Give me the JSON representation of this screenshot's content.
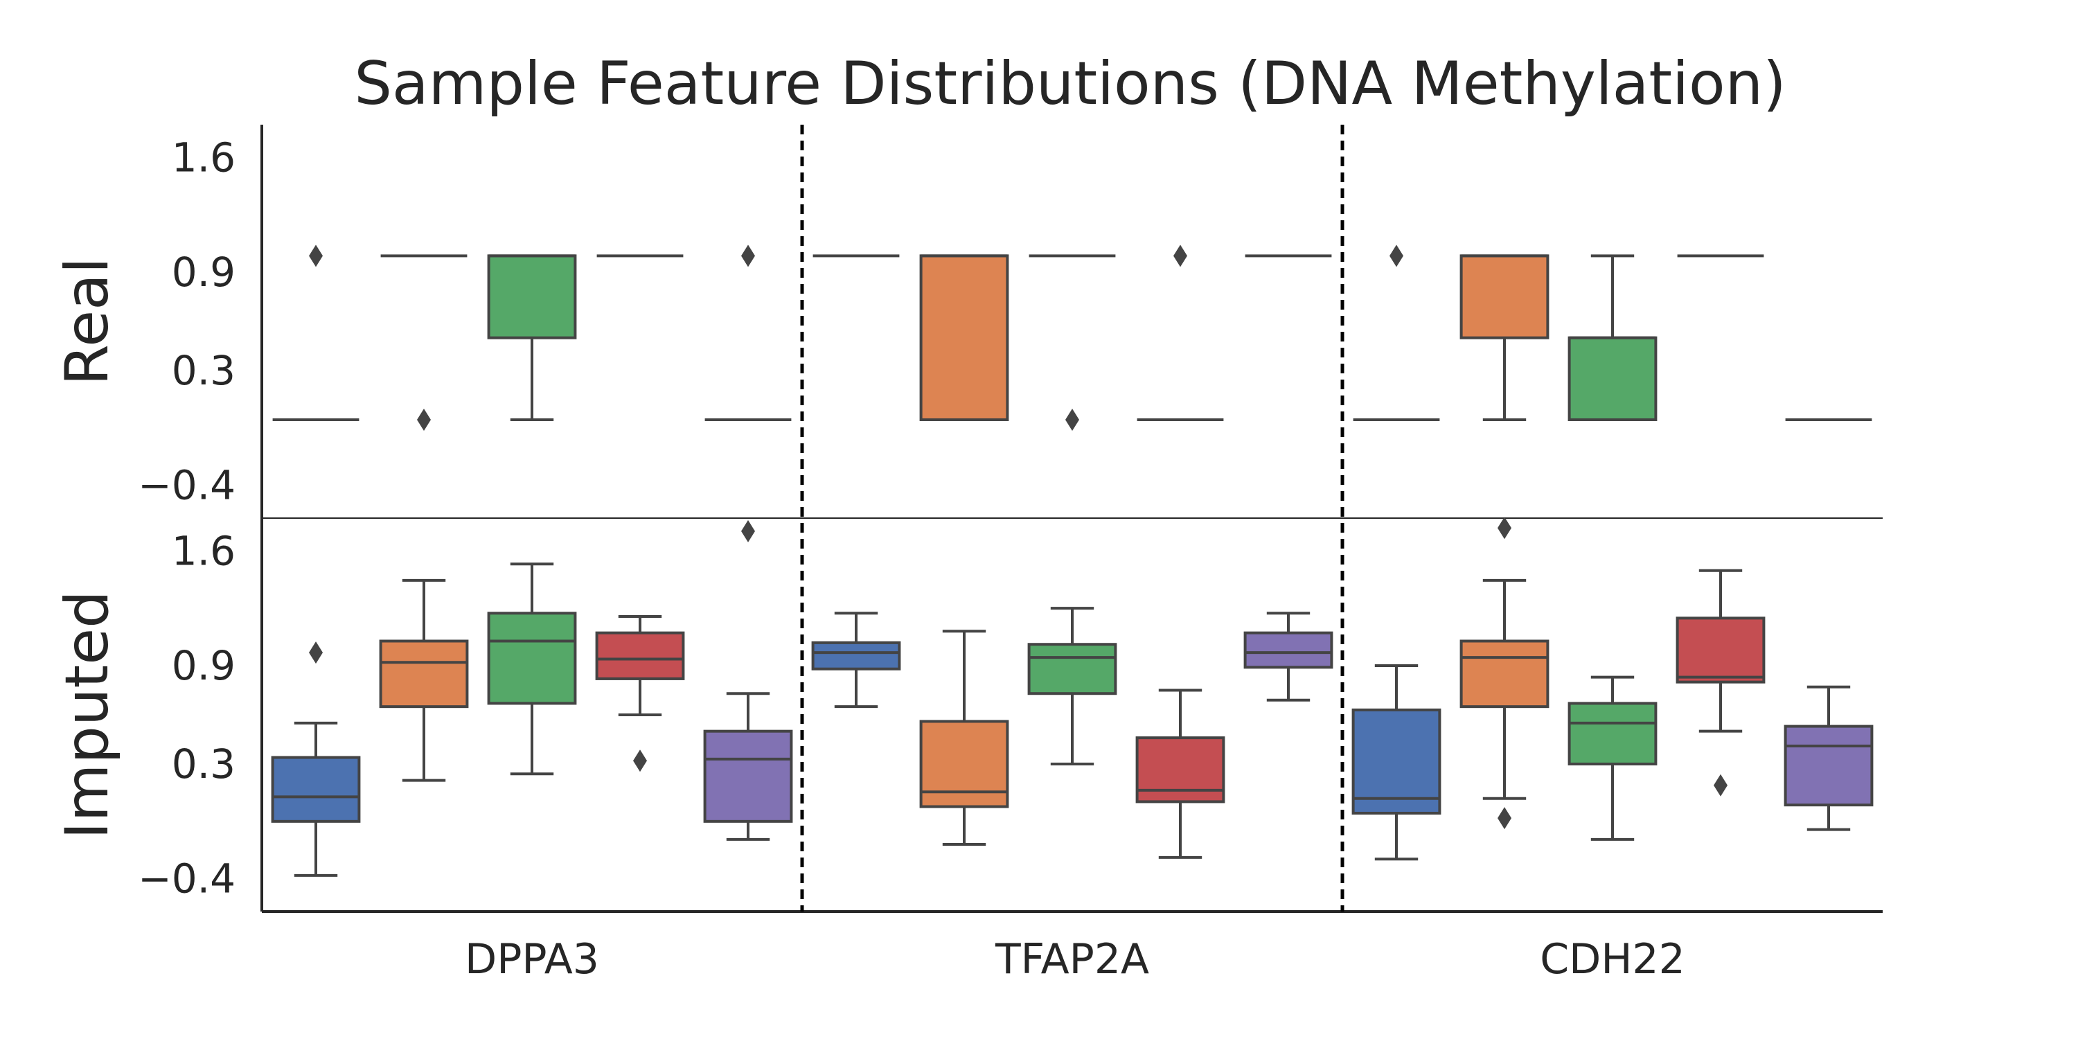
{
  "chart_data": {
    "type": "box",
    "title": "Sample Feature Distributions (DNA Methylation)",
    "rows": [
      "Real",
      "Imputed"
    ],
    "genes": [
      "DPPA3",
      "TFAP2A",
      "CDH22"
    ],
    "yticks": [
      1.6,
      0.9,
      0.3,
      -0.4
    ],
    "ytick_labels": [
      "1.6",
      "0.9",
      "0.3",
      "−0.4"
    ],
    "ylim": [
      -0.6,
      1.8
    ],
    "palette": [
      "#4c72b0",
      "#dd8452",
      "#55a868",
      "#c44e52",
      "#8172b3"
    ],
    "line_color": "#444444",
    "separators": "dashed",
    "panels": [
      {
        "row": "Real",
        "gene": "DPPA3",
        "boxes": [
          {
            "q1": 0.0,
            "median": 0.0,
            "q3": 0.0,
            "wlow": 0.0,
            "whigh": 0.0,
            "outliers": [
              1.0
            ]
          },
          {
            "q1": 1.0,
            "median": 1.0,
            "q3": 1.0,
            "wlow": 1.0,
            "whigh": 1.0,
            "outliers": [
              0.0
            ]
          },
          {
            "q1": 0.5,
            "median": 1.0,
            "q3": 1.0,
            "wlow": 0.0,
            "whigh": 1.0,
            "outliers": []
          },
          {
            "q1": 1.0,
            "median": 1.0,
            "q3": 1.0,
            "wlow": 1.0,
            "whigh": 1.0,
            "outliers": []
          },
          {
            "q1": 0.0,
            "median": 0.0,
            "q3": 0.0,
            "wlow": 0.0,
            "whigh": 0.0,
            "outliers": [
              1.0
            ]
          }
        ]
      },
      {
        "row": "Real",
        "gene": "TFAP2A",
        "boxes": [
          {
            "q1": 1.0,
            "median": 1.0,
            "q3": 1.0,
            "wlow": 1.0,
            "whigh": 1.0,
            "outliers": []
          },
          {
            "q1": 0.0,
            "median": 1.0,
            "q3": 1.0,
            "wlow": 0.0,
            "whigh": 1.0,
            "outliers": []
          },
          {
            "q1": 1.0,
            "median": 1.0,
            "q3": 1.0,
            "wlow": 1.0,
            "whigh": 1.0,
            "outliers": [
              0.0
            ]
          },
          {
            "q1": 0.0,
            "median": 0.0,
            "q3": 0.0,
            "wlow": 0.0,
            "whigh": 0.0,
            "outliers": [
              1.0
            ]
          },
          {
            "q1": 1.0,
            "median": 1.0,
            "q3": 1.0,
            "wlow": 1.0,
            "whigh": 1.0,
            "outliers": []
          }
        ]
      },
      {
        "row": "Real",
        "gene": "CDH22",
        "boxes": [
          {
            "q1": 0.0,
            "median": 0.0,
            "q3": 0.0,
            "wlow": 0.0,
            "whigh": 0.0,
            "outliers": [
              1.0
            ]
          },
          {
            "q1": 0.5,
            "median": 1.0,
            "q3": 1.0,
            "wlow": 0.0,
            "whigh": 1.0,
            "outliers": []
          },
          {
            "q1": 0.0,
            "median": 0.5,
            "q3": 0.5,
            "wlow": 0.0,
            "whigh": 1.0,
            "outliers": []
          },
          {
            "q1": 1.0,
            "median": 1.0,
            "q3": 1.0,
            "wlow": 1.0,
            "whigh": 1.0,
            "outliers": []
          },
          {
            "q1": 0.0,
            "median": 0.0,
            "q3": 0.0,
            "wlow": 0.0,
            "whigh": 0.0,
            "outliers": []
          }
        ]
      },
      {
        "row": "Imputed",
        "gene": "DPPA3",
        "boxes": [
          {
            "q1": -0.05,
            "median": 0.1,
            "q3": 0.34,
            "wlow": -0.38,
            "whigh": 0.55,
            "outliers": [
              0.98
            ]
          },
          {
            "q1": 0.65,
            "median": 0.92,
            "q3": 1.05,
            "wlow": 0.2,
            "whigh": 1.42,
            "outliers": []
          },
          {
            "q1": 0.67,
            "median": 1.05,
            "q3": 1.22,
            "wlow": 0.24,
            "whigh": 1.52,
            "outliers": []
          },
          {
            "q1": 0.82,
            "median": 0.94,
            "q3": 1.1,
            "wlow": 0.6,
            "whigh": 1.2,
            "outliers": [
              0.32
            ]
          },
          {
            "q1": -0.05,
            "median": 0.33,
            "q3": 0.5,
            "wlow": -0.16,
            "whigh": 0.73,
            "outliers": [
              1.72
            ]
          }
        ]
      },
      {
        "row": "Imputed",
        "gene": "TFAP2A",
        "boxes": [
          {
            "q1": 0.88,
            "median": 0.98,
            "q3": 1.04,
            "wlow": 0.65,
            "whigh": 1.22,
            "outliers": []
          },
          {
            "q1": 0.04,
            "median": 0.13,
            "q3": 0.56,
            "wlow": -0.19,
            "whigh": 1.11,
            "outliers": []
          },
          {
            "q1": 0.73,
            "median": 0.95,
            "q3": 1.03,
            "wlow": 0.3,
            "whigh": 1.25,
            "outliers": []
          },
          {
            "q1": 0.07,
            "median": 0.14,
            "q3": 0.46,
            "wlow": -0.27,
            "whigh": 0.75,
            "outliers": []
          },
          {
            "q1": 0.89,
            "median": 0.98,
            "q3": 1.1,
            "wlow": 0.69,
            "whigh": 1.22,
            "outliers": []
          }
        ]
      },
      {
        "row": "Imputed",
        "gene": "CDH22",
        "boxes": [
          {
            "q1": 0.0,
            "median": 0.09,
            "q3": 0.63,
            "wlow": -0.28,
            "whigh": 0.9,
            "outliers": []
          },
          {
            "q1": 0.65,
            "median": 0.95,
            "q3": 1.05,
            "wlow": 0.09,
            "whigh": 1.42,
            "outliers": [
              -0.03,
              1.74
            ]
          },
          {
            "q1": 0.3,
            "median": 0.55,
            "q3": 0.67,
            "wlow": -0.16,
            "whigh": 0.83,
            "outliers": []
          },
          {
            "q1": 0.8,
            "median": 0.83,
            "q3": 1.19,
            "wlow": 0.5,
            "whigh": 1.48,
            "outliers": [
              0.17
            ]
          },
          {
            "q1": 0.05,
            "median": 0.41,
            "q3": 0.53,
            "wlow": -0.1,
            "whigh": 0.77,
            "outliers": []
          }
        ]
      }
    ]
  }
}
